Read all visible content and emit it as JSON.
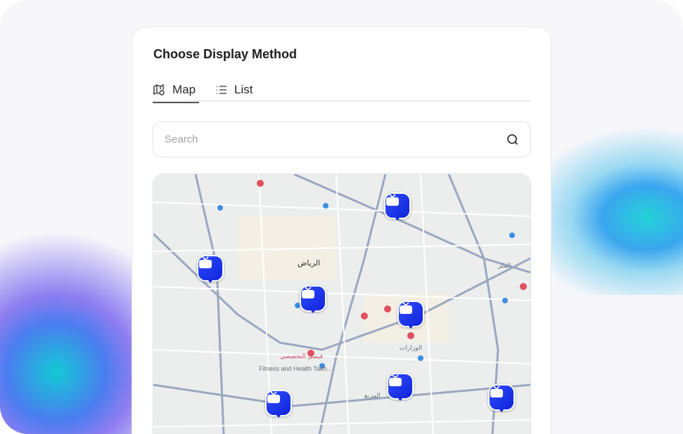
{
  "title": "Choose Display Method",
  "tabs": [
    {
      "label": "Map",
      "icon": "map-icon",
      "active": true
    },
    {
      "label": "List",
      "icon": "list-icon",
      "active": false
    }
  ],
  "search": {
    "placeholder": "Search",
    "value": "",
    "icon": "search-icon"
  },
  "map": {
    "labels": [
      "الرياض",
      "Fitness and Health Takh...",
      "فيصل التخصصي",
      "الوزارات",
      "المربع",
      "الملز"
    ],
    "marker_icon": "tv-icon",
    "marker_count": 7,
    "marker_color": "#1f3bf0"
  }
}
